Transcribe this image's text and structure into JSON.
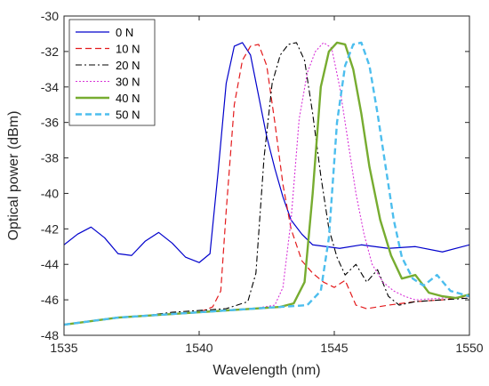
{
  "chart_data": {
    "type": "line",
    "title": "",
    "xlabel": "Wavelength (nm)",
    "ylabel": "Optical power (dBm)",
    "xlim": [
      1535,
      1550
    ],
    "ylim": [
      -48,
      -30
    ],
    "xticks": [
      1535,
      1540,
      1545,
      1550
    ],
    "yticks": [
      -48,
      -46,
      -44,
      -42,
      -40,
      -38,
      -36,
      -34,
      -32,
      -30
    ],
    "grid": false,
    "legend_position": "top-left",
    "series": [
      {
        "name": "0 N",
        "color": "#0000cc",
        "dash": "solid",
        "width": 1.2,
        "x": [
          1535,
          1535.5,
          1536,
          1536.5,
          1537,
          1537.5,
          1538,
          1538.5,
          1539,
          1539.5,
          1540,
          1540.4,
          1540.7,
          1541.0,
          1541.3,
          1541.6,
          1541.9,
          1542.2,
          1542.5,
          1542.8,
          1543.1,
          1543.4,
          1543.8,
          1544.2,
          1544.7,
          1545.2,
          1546,
          1547,
          1548,
          1549,
          1550
        ],
        "y": [
          -42.9,
          -42.3,
          -41.9,
          -42.5,
          -43.4,
          -43.5,
          -42.7,
          -42.2,
          -42.8,
          -43.6,
          -43.9,
          -43.4,
          -38.8,
          -33.8,
          -31.7,
          -31.5,
          -32.2,
          -34.5,
          -36.8,
          -38.6,
          -40.2,
          -41.5,
          -42.3,
          -42.9,
          -43.0,
          -43.1,
          -42.9,
          -43.1,
          -43.0,
          -43.3,
          -42.9
        ]
      },
      {
        "name": "10 N",
        "color": "#e31a1c",
        "dash": "7,4",
        "width": 1.2,
        "x": [
          1535,
          1536,
          1537,
          1538,
          1539,
          1540,
          1540.5,
          1540.8,
          1541.0,
          1541.3,
          1541.6,
          1541.9,
          1542.2,
          1542.5,
          1542.8,
          1543.1,
          1543.4,
          1543.8,
          1544.2,
          1544.6,
          1545.0,
          1545.4,
          1545.8,
          1546.2,
          1547,
          1548,
          1549,
          1550
        ],
        "y": [
          -47.4,
          -47.2,
          -47.0,
          -46.9,
          -46.8,
          -46.7,
          -46.4,
          -45.5,
          -41.0,
          -35.0,
          -32.5,
          -31.7,
          -31.6,
          -32.8,
          -36.0,
          -39.5,
          -42.0,
          -43.8,
          -44.5,
          -45.0,
          -45.3,
          -44.9,
          -46.3,
          -46.5,
          -46.3,
          -46.1,
          -46.0,
          -45.8
        ]
      },
      {
        "name": "20 N",
        "color": "#000000",
        "dash": "7,3,2,3",
        "width": 1.1,
        "x": [
          1535,
          1536,
          1537,
          1538,
          1539,
          1540,
          1541,
          1541.8,
          1542.1,
          1542.4,
          1542.7,
          1543.0,
          1543.3,
          1543.6,
          1543.9,
          1544.2,
          1544.5,
          1544.8,
          1545.1,
          1545.4,
          1545.8,
          1546.2,
          1546.6,
          1547.0,
          1547.4,
          1548,
          1549,
          1550
        ],
        "y": [
          -47.4,
          -47.2,
          -47.0,
          -46.9,
          -46.7,
          -46.6,
          -46.5,
          -46.1,
          -44.5,
          -38.0,
          -33.8,
          -32.2,
          -31.6,
          -31.5,
          -32.5,
          -35.5,
          -39.0,
          -42.0,
          -43.6,
          -44.6,
          -44.0,
          -45.0,
          -44.3,
          -45.8,
          -46.3,
          -46.1,
          -46.0,
          -45.9
        ]
      },
      {
        "name": "30 N",
        "color": "#d833d8",
        "dash": "2,2",
        "width": 1.1,
        "x": [
          1535,
          1536,
          1537,
          1538,
          1539,
          1540,
          1541,
          1542,
          1542.8,
          1543.1,
          1543.4,
          1543.7,
          1544.0,
          1544.3,
          1544.6,
          1544.9,
          1545.2,
          1545.5,
          1545.8,
          1546.1,
          1546.4,
          1546.8,
          1547.2,
          1547.6,
          1548,
          1549,
          1550
        ],
        "y": [
          -47.4,
          -47.2,
          -47.0,
          -46.9,
          -46.8,
          -46.7,
          -46.6,
          -46.5,
          -46.3,
          -45.3,
          -41.5,
          -35.8,
          -33.2,
          -32.0,
          -31.5,
          -31.8,
          -34.0,
          -37.0,
          -40.0,
          -42.3,
          -44.0,
          -45.0,
          -45.5,
          -45.8,
          -46.0,
          -45.9,
          -45.8
        ]
      },
      {
        "name": "40 N",
        "color": "#77ac30",
        "dash": "solid",
        "width": 2.4,
        "x": [
          1535,
          1536,
          1537,
          1538,
          1539,
          1540,
          1541,
          1542,
          1543,
          1543.5,
          1543.9,
          1544.2,
          1544.5,
          1544.8,
          1545.1,
          1545.4,
          1545.7,
          1546.0,
          1546.3,
          1546.7,
          1547.1,
          1547.5,
          1548.0,
          1548.5,
          1549,
          1549.5,
          1550
        ],
        "y": [
          -47.4,
          -47.2,
          -47.0,
          -46.9,
          -46.8,
          -46.7,
          -46.6,
          -46.5,
          -46.4,
          -46.2,
          -45.0,
          -40.0,
          -34.0,
          -32.0,
          -31.5,
          -31.6,
          -33.0,
          -35.5,
          -38.5,
          -41.5,
          -43.5,
          -44.8,
          -44.6,
          -45.6,
          -45.8,
          -45.9,
          -45.7
        ]
      },
      {
        "name": "50 N",
        "color": "#4dbeee",
        "dash": "7,4",
        "width": 2.4,
        "x": [
          1535,
          1536,
          1537,
          1538,
          1539,
          1540,
          1541,
          1542,
          1543,
          1544,
          1544.5,
          1544.8,
          1545.1,
          1545.4,
          1545.7,
          1546.0,
          1546.3,
          1546.6,
          1546.9,
          1547.2,
          1547.5,
          1547.9,
          1548.3,
          1548.8,
          1549.3,
          1550
        ],
        "y": [
          -47.4,
          -47.2,
          -47.0,
          -46.9,
          -46.8,
          -46.7,
          -46.6,
          -46.5,
          -46.4,
          -46.3,
          -45.5,
          -42.5,
          -36.0,
          -32.8,
          -31.6,
          -31.5,
          -32.8,
          -35.5,
          -38.5,
          -41.5,
          -43.6,
          -44.8,
          -45.2,
          -44.6,
          -45.5,
          -45.8
        ]
      }
    ]
  }
}
